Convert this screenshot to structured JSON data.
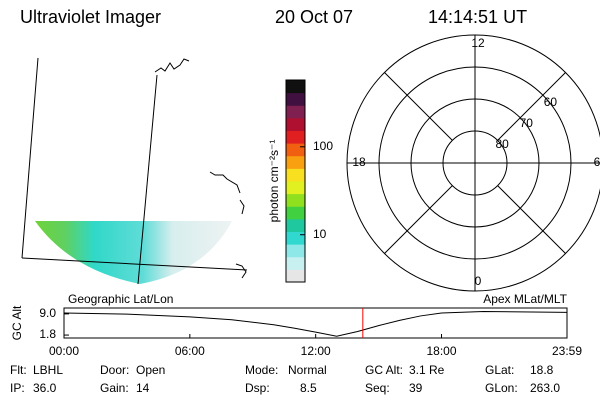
{
  "header": {
    "title": "Ultraviolet Imager",
    "date": "20 Oct 07",
    "time": "14:14:51 UT"
  },
  "map": {
    "label": "Geographic Lat/Lon"
  },
  "colorbar": {
    "label": "photon cm⁻²s⁻¹",
    "scale": "log",
    "lim": [
      2.9,
      575
    ],
    "ticks": [
      10,
      100
    ],
    "colors": [
      "#e6e6e6",
      "#c8f0f0",
      "#8ee8e8",
      "#30d8d0",
      "#20c8a0",
      "#40d040",
      "#90e020",
      "#e0f020",
      "#f8e020",
      "#f8a010",
      "#f06010",
      "#e02020",
      "#b01030",
      "#802050",
      "#401040",
      "#101010"
    ]
  },
  "polar": {
    "label": "Apex MLat/MLT",
    "lat_range": [
      90,
      50
    ],
    "latitudes": [
      80,
      70,
      60
    ],
    "mlt_labels": [
      12,
      18,
      6,
      0
    ]
  },
  "altitude": {
    "ylabel": "GC Alt",
    "ylim": [
      0.8,
      11.0
    ],
    "yticks": [
      {
        "value": 9.0,
        "label": "9.0"
      },
      {
        "value": 1.8,
        "label": "1.8"
      }
    ],
    "xlim": [
      0,
      23.983
    ],
    "xticks": [
      {
        "value": 0,
        "label": "00:00"
      },
      {
        "value": 6,
        "label": "06:00"
      },
      {
        "value": 12,
        "label": "12:00"
      },
      {
        "value": 18,
        "label": "18:00"
      },
      {
        "value": 23.983,
        "label": "23:59"
      }
    ],
    "x": [
      0,
      3,
      6,
      8,
      10,
      11,
      12,
      13,
      14,
      15,
      16,
      17,
      18,
      20,
      23.983
    ],
    "values": [
      9.3,
      8.9,
      8.0,
      7.0,
      5.3,
      4.1,
      2.8,
      1.4,
      3.0,
      5.0,
      6.8,
      8.3,
      9.3,
      9.8,
      9.5
    ],
    "color": "#000000",
    "current_time": 14.248,
    "marker_color": "#ff0000"
  },
  "status": [
    [
      [
        "Flt:",
        "LBHL"
      ],
      [
        "Door:",
        "Open"
      ],
      [
        "Mode:",
        "Normal"
      ],
      [
        "GC Alt:",
        "3.1 Re"
      ],
      [
        "GLat:",
        "18.8"
      ]
    ],
    [
      [
        "IP:",
        "36.0"
      ],
      [
        "Gain:",
        "14"
      ],
      [
        "Dsp:",
        "8.5"
      ],
      [
        "Seq:",
        "39"
      ],
      [
        "GLon:",
        "263.0"
      ]
    ]
  ]
}
